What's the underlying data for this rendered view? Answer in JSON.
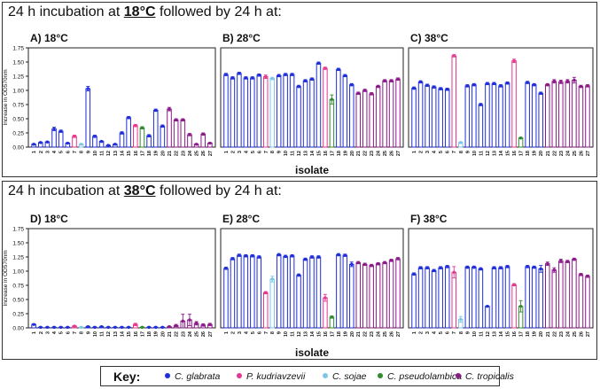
{
  "section1": {
    "title_pre": "24 h incubation at ",
    "title_temp": "18°C",
    "title_post": " followed by 24 h at:"
  },
  "section2": {
    "title_pre": "24 h incubation at ",
    "title_temp": "38°C",
    "title_post": " followed by 24 h at:"
  },
  "colors": {
    "glabrata": "#1f2ed8",
    "kudriavzevii": "#e8368f",
    "sojae": "#7ec6e8",
    "pseudolambica": "#2e8b2e",
    "tropicalis": "#8b1a89"
  },
  "key": {
    "title": "Key:",
    "items": [
      {
        "label": "C. glabrata",
        "color": "#1f2ed8"
      },
      {
        "label": "P. kudriavzevii",
        "color": "#e8368f"
      },
      {
        "label": "C. sojae",
        "color": "#7ec6e8"
      },
      {
        "label": "C. pseudolambica",
        "color": "#2e8b2e"
      },
      {
        "label": "C. tropicalis",
        "color": "#8b1a89"
      }
    ]
  },
  "chart_data": [
    {
      "type": "bar",
      "panel": "A",
      "title": "A) 18°C",
      "xlabel": "",
      "ylabel": "Increase in OD570nm",
      "ylim": [
        0,
        1.75
      ],
      "yticks": [
        "0.00",
        "0.25",
        "0.50",
        "0.75",
        "1.00",
        "1.25",
        "1.50",
        "1.75"
      ],
      "categories": [
        "1",
        "2",
        "3",
        "4",
        "5",
        "6",
        "7",
        "8",
        "9",
        "10",
        "11",
        "12",
        "13",
        "14",
        "15",
        "16",
        "17",
        "18",
        "19",
        "20",
        "21",
        "22",
        "23",
        "24",
        "25",
        "26",
        "27"
      ],
      "species": [
        "glabrata",
        "glabrata",
        "glabrata",
        "glabrata",
        "glabrata",
        "glabrata",
        "kudriavzevii",
        "sojae",
        "glabrata",
        "glabrata",
        "glabrata",
        "glabrata",
        "glabrata",
        "glabrata",
        "glabrata",
        "kudriavzevii",
        "pseudolambica",
        "glabrata",
        "glabrata",
        "glabrata",
        "tropicalis",
        "tropicalis",
        "tropicalis",
        "tropicalis",
        "tropicalis",
        "tropicalis",
        "tropicalis"
      ],
      "values": [
        0.05,
        0.08,
        0.09,
        0.32,
        0.28,
        0.07,
        0.19,
        0.05,
        1.03,
        0.19,
        0.1,
        0.03,
        0.05,
        0.25,
        0.52,
        0.38,
        0.34,
        0.2,
        0.65,
        0.37,
        0.67,
        0.48,
        0.48,
        0.22,
        0.05,
        0.23,
        0.07
      ],
      "errors": [
        0.01,
        0.01,
        0.01,
        0.03,
        0.02,
        0.01,
        0.02,
        0.01,
        0.04,
        0.02,
        0.01,
        0.01,
        0.01,
        0.02,
        0.02,
        0.02,
        0.02,
        0.02,
        0.02,
        0.02,
        0.03,
        0.02,
        0.02,
        0.02,
        0.01,
        0.02,
        0.01
      ]
    },
    {
      "type": "bar",
      "panel": "B",
      "title": "B) 28°C",
      "xlabel": "isolate",
      "ylabel": "",
      "ylim": [
        0,
        1.75
      ],
      "categories": [
        "1",
        "2",
        "3",
        "4",
        "5",
        "6",
        "7",
        "8",
        "9",
        "10",
        "11",
        "12",
        "13",
        "14",
        "15",
        "16",
        "17",
        "18",
        "19",
        "20",
        "21",
        "22",
        "23",
        "24",
        "25",
        "26",
        "27"
      ],
      "species": [
        "glabrata",
        "glabrata",
        "glabrata",
        "glabrata",
        "glabrata",
        "glabrata",
        "kudriavzevii",
        "sojae",
        "glabrata",
        "glabrata",
        "glabrata",
        "glabrata",
        "glabrata",
        "glabrata",
        "glabrata",
        "kudriavzevii",
        "pseudolambica",
        "glabrata",
        "glabrata",
        "glabrata",
        "tropicalis",
        "tropicalis",
        "tropicalis",
        "tropicalis",
        "tropicalis",
        "tropicalis",
        "tropicalis"
      ],
      "values": [
        1.28,
        1.22,
        1.3,
        1.22,
        1.22,
        1.27,
        1.24,
        1.21,
        1.26,
        1.28,
        1.28,
        1.07,
        1.17,
        1.2,
        1.48,
        1.39,
        0.84,
        1.37,
        1.26,
        1.1,
        0.95,
        1.0,
        0.94,
        1.07,
        1.17,
        1.17,
        1.2
      ],
      "errors": [
        0.02,
        0.02,
        0.02,
        0.02,
        0.02,
        0.02,
        0.03,
        0.02,
        0.02,
        0.02,
        0.02,
        0.02,
        0.02,
        0.02,
        0.02,
        0.02,
        0.08,
        0.02,
        0.02,
        0.02,
        0.02,
        0.02,
        0.02,
        0.02,
        0.02,
        0.02,
        0.02
      ]
    },
    {
      "type": "bar",
      "panel": "C",
      "title": "C) 38°C",
      "xlabel": "",
      "ylabel": "",
      "ylim": [
        0,
        1.75
      ],
      "categories": [
        "1",
        "2",
        "3",
        "4",
        "5",
        "6",
        "7",
        "8",
        "9",
        "10",
        "11",
        "12",
        "13",
        "14",
        "15",
        "16",
        "17",
        "18",
        "19",
        "20",
        "21",
        "22",
        "23",
        "24",
        "25",
        "26",
        "27"
      ],
      "species": [
        "glabrata",
        "glabrata",
        "glabrata",
        "glabrata",
        "glabrata",
        "glabrata",
        "kudriavzevii",
        "sojae",
        "glabrata",
        "glabrata",
        "glabrata",
        "glabrata",
        "glabrata",
        "glabrata",
        "glabrata",
        "kudriavzevii",
        "pseudolambica",
        "glabrata",
        "glabrata",
        "glabrata",
        "tropicalis",
        "tropicalis",
        "tropicalis",
        "tropicalis",
        "tropicalis",
        "tropicalis",
        "tropicalis"
      ],
      "values": [
        1.04,
        1.15,
        1.09,
        1.06,
        1.03,
        1.02,
        1.61,
        0.08,
        1.08,
        1.1,
        0.75,
        1.12,
        1.12,
        1.08,
        1.13,
        1.52,
        0.16,
        1.14,
        1.1,
        0.95,
        1.1,
        1.16,
        1.15,
        1.16,
        1.18,
        1.07,
        1.08
      ],
      "errors": [
        0.02,
        0.02,
        0.02,
        0.02,
        0.02,
        0.02,
        0.02,
        0.01,
        0.02,
        0.02,
        0.02,
        0.02,
        0.02,
        0.02,
        0.02,
        0.03,
        0.01,
        0.02,
        0.02,
        0.02,
        0.02,
        0.03,
        0.03,
        0.03,
        0.05,
        0.02,
        0.02
      ]
    },
    {
      "type": "bar",
      "panel": "D",
      "title": "D) 18°C",
      "xlabel": "",
      "ylabel": "Increase in OD570nm",
      "ylim": [
        0,
        1.75
      ],
      "yticks": [
        "0.00",
        "0.25",
        "0.50",
        "0.75",
        "1.00",
        "1.25",
        "1.50",
        "1.75"
      ],
      "categories": [
        "1",
        "2",
        "3",
        "4",
        "5",
        "6",
        "7",
        "8",
        "9",
        "10",
        "11",
        "12",
        "13",
        "14",
        "15",
        "16",
        "17",
        "18",
        "19",
        "20",
        "21",
        "22",
        "23",
        "24",
        "25",
        "26",
        "27"
      ],
      "species": [
        "glabrata",
        "glabrata",
        "glabrata",
        "glabrata",
        "glabrata",
        "glabrata",
        "kudriavzevii",
        "sojae",
        "glabrata",
        "glabrata",
        "glabrata",
        "glabrata",
        "glabrata",
        "glabrata",
        "glabrata",
        "kudriavzevii",
        "pseudolambica",
        "glabrata",
        "glabrata",
        "glabrata",
        "tropicalis",
        "tropicalis",
        "tropicalis",
        "tropicalis",
        "tropicalis",
        "tropicalis",
        "tropicalis"
      ],
      "values": [
        0.06,
        0.01,
        0.01,
        0.01,
        0.01,
        0.01,
        0.03,
        0.01,
        0.02,
        0.01,
        0.02,
        0.01,
        0.01,
        0.01,
        0.01,
        0.06,
        0.01,
        0.01,
        0.01,
        0.01,
        0.02,
        0.04,
        0.12,
        0.14,
        0.08,
        0.05,
        0.06
      ],
      "errors": [
        0.01,
        0.01,
        0.01,
        0.01,
        0.01,
        0.01,
        0.01,
        0.01,
        0.01,
        0.01,
        0.01,
        0.01,
        0.01,
        0.01,
        0.01,
        0.02,
        0.01,
        0.01,
        0.01,
        0.01,
        0.01,
        0.02,
        0.12,
        0.1,
        0.03,
        0.02,
        0.02
      ]
    },
    {
      "type": "bar",
      "panel": "E",
      "title": "E) 28°C",
      "xlabel": "isolate",
      "ylabel": "",
      "ylim": [
        0,
        1.75
      ],
      "categories": [
        "1",
        "2",
        "3",
        "4",
        "5",
        "6",
        "7",
        "8",
        "9",
        "10",
        "11",
        "12",
        "13",
        "14",
        "15",
        "16",
        "17",
        "18",
        "19",
        "20",
        "21",
        "22",
        "23",
        "24",
        "25",
        "26",
        "27"
      ],
      "species": [
        "glabrata",
        "glabrata",
        "glabrata",
        "glabrata",
        "glabrata",
        "glabrata",
        "kudriavzevii",
        "sojae",
        "glabrata",
        "glabrata",
        "glabrata",
        "glabrata",
        "glabrata",
        "glabrata",
        "glabrata",
        "kudriavzevii",
        "pseudolambica",
        "glabrata",
        "glabrata",
        "glabrata",
        "tropicalis",
        "tropicalis",
        "tropicalis",
        "tropicalis",
        "tropicalis",
        "tropicalis",
        "tropicalis"
      ],
      "values": [
        1.05,
        1.22,
        1.28,
        1.27,
        1.27,
        1.25,
        0.62,
        0.86,
        1.29,
        1.26,
        1.27,
        0.93,
        1.21,
        1.25,
        1.25,
        0.53,
        0.19,
        1.29,
        1.28,
        1.12,
        1.15,
        1.12,
        1.1,
        1.13,
        1.15,
        1.19,
        1.22
      ],
      "errors": [
        0.02,
        0.02,
        0.02,
        0.02,
        0.02,
        0.02,
        0.02,
        0.05,
        0.02,
        0.02,
        0.02,
        0.02,
        0.02,
        0.02,
        0.02,
        0.06,
        0.02,
        0.02,
        0.02,
        0.04,
        0.02,
        0.02,
        0.02,
        0.02,
        0.02,
        0.02,
        0.02
      ]
    },
    {
      "type": "bar",
      "panel": "F",
      "title": "F) 38°C",
      "xlabel": "",
      "ylabel": "",
      "ylim": [
        0,
        1.75
      ],
      "categories": [
        "1",
        "2",
        "3",
        "4",
        "5",
        "6",
        "7",
        "8",
        "9",
        "10",
        "11",
        "12",
        "13",
        "14",
        "15",
        "16",
        "17",
        "18",
        "19",
        "20",
        "21",
        "22",
        "23",
        "24",
        "25",
        "26",
        "27"
      ],
      "species": [
        "glabrata",
        "glabrata",
        "glabrata",
        "glabrata",
        "glabrata",
        "glabrata",
        "kudriavzevii",
        "sojae",
        "glabrata",
        "glabrata",
        "glabrata",
        "glabrata",
        "glabrata",
        "glabrata",
        "glabrata",
        "kudriavzevii",
        "pseudolambica",
        "glabrata",
        "glabrata",
        "glabrata",
        "tropicalis",
        "tropicalis",
        "tropicalis",
        "tropicalis",
        "tropicalis",
        "tropicalis",
        "tropicalis"
      ],
      "values": [
        0.95,
        1.06,
        1.06,
        1.01,
        1.06,
        1.08,
        0.98,
        0.15,
        1.07,
        1.07,
        1.04,
        0.38,
        1.06,
        1.06,
        1.08,
        0.76,
        0.38,
        1.08,
        1.07,
        1.04,
        1.13,
        1.02,
        1.18,
        1.17,
        1.21,
        0.94,
        0.91
      ],
      "errors": [
        0.02,
        0.02,
        0.02,
        0.02,
        0.02,
        0.02,
        0.1,
        0.05,
        0.02,
        0.02,
        0.02,
        0.01,
        0.02,
        0.02,
        0.02,
        0.02,
        0.1,
        0.02,
        0.02,
        0.06,
        0.03,
        0.04,
        0.03,
        0.02,
        0.02,
        0.02,
        0.02
      ]
    }
  ]
}
